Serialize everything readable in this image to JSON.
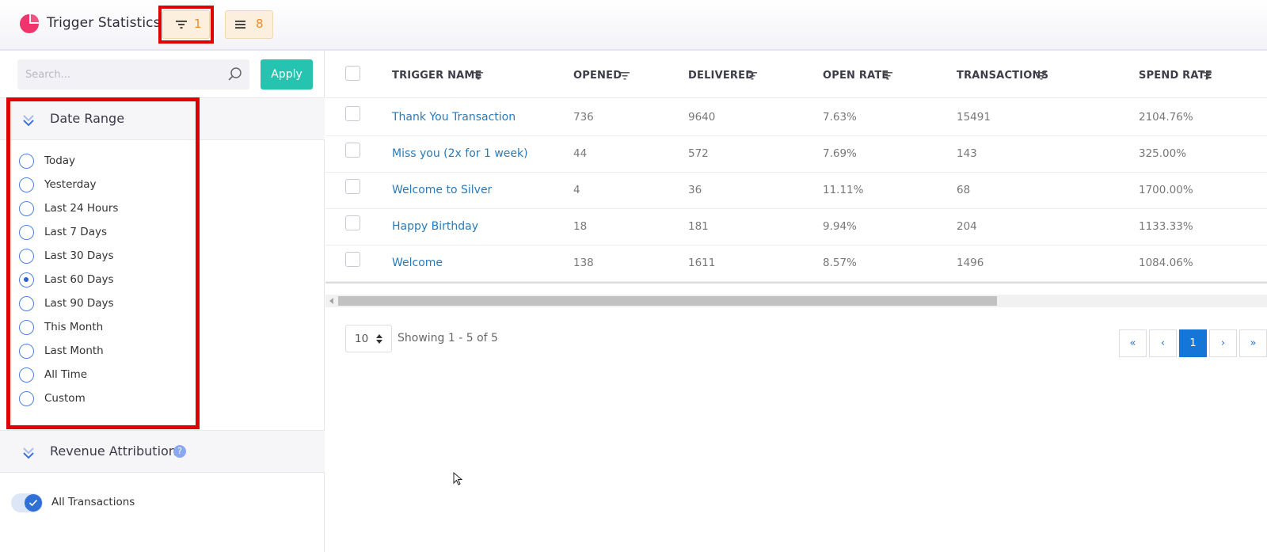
{
  "app": {
    "title": "Trigger Statistics"
  },
  "toolbar": {
    "filter_count": "1",
    "columns_count": "8"
  },
  "sidebar": {
    "search_placeholder": "Search...",
    "apply_label": "Apply",
    "date_range": {
      "title": "Date Range",
      "options": [
        "Today",
        "Yesterday",
        "Last 24 Hours",
        "Last 7 Days",
        "Last 30 Days",
        "Last 60 Days",
        "Last 90 Days",
        "This Month",
        "Last Month",
        "All Time",
        "Custom"
      ],
      "selected": "Last 60 Days"
    },
    "revenue_attribution": {
      "title": "Revenue Attribution",
      "help_glyph": "?",
      "toggle_label": "All Transactions",
      "toggle_on": true
    }
  },
  "table": {
    "columns": [
      "TRIGGER NAME",
      "OPENED",
      "DELIVERED",
      "OPEN RATE",
      "TRANSACTIONS",
      "SPEND RATE"
    ],
    "rows": [
      [
        "Thank You Transaction",
        "736",
        "9640",
        "7.63%",
        "15491",
        "2104.76%"
      ],
      [
        "Miss you (2x for 1 week)",
        "44",
        "572",
        "7.69%",
        "143",
        "325.00%"
      ],
      [
        "Welcome to Silver",
        "4",
        "36",
        "11.11%",
        "68",
        "1700.00%"
      ],
      [
        "Happy Birthday",
        "18",
        "181",
        "9.94%",
        "204",
        "1133.33%"
      ],
      [
        "Welcome",
        "138",
        "1611",
        "8.57%",
        "1496",
        "1084.06%"
      ]
    ]
  },
  "pagination": {
    "per_page": "10",
    "showing": "Showing 1 - 5 of 5",
    "first": "«",
    "prev": "‹",
    "current": "1",
    "next": "›",
    "last": "»"
  },
  "colors": {
    "accent_teal": "#26c4b0",
    "link_blue": "#2a7ab8",
    "badge_orange": "#ef8a27",
    "highlight_red": "#e00000",
    "pager_active": "#1576d8"
  }
}
